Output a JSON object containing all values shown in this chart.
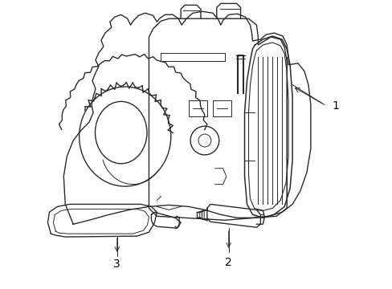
{
  "background_color": "#ffffff",
  "line_color": "#333333",
  "line_width": 0.9,
  "label_1": "1",
  "label_2": "2",
  "label_3": "3",
  "figsize": [
    4.89,
    3.6
  ],
  "dpi": 100
}
